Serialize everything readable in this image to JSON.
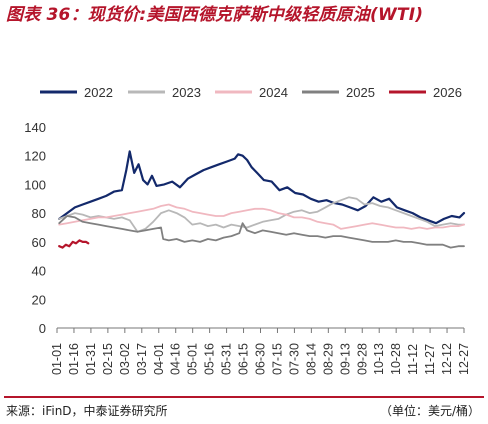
{
  "title": "图表 36：现货价:美国西德克萨斯中级轻质原油(WTI)",
  "source": "来源：iFinD，中泰证券研究所",
  "unit": "（单位：美元/桶）",
  "chart_data": {
    "type": "line",
    "title": "图表 36：现货价:美国西德克萨斯中级轻质原油(WTI)",
    "xlabel": "",
    "ylabel": "",
    "ylim": [
      0,
      140
    ],
    "yticks": [
      0,
      20,
      40,
      60,
      80,
      100,
      120,
      140
    ],
    "grid": false,
    "legend_position": "top",
    "x_tick_labels": [
      "01-01",
      "01-16",
      "01-31",
      "02-15",
      "03-02",
      "03-17",
      "04-01",
      "04-16",
      "05-01",
      "05-16",
      "05-31",
      "06-15",
      "06-30",
      "07-15",
      "07-30",
      "08-14",
      "08-29",
      "09-13",
      "09-28",
      "10-13",
      "10-28",
      "11-12",
      "11-27",
      "12-12",
      "12-27"
    ],
    "x_day_range": [
      1,
      365
    ],
    "series": [
      {
        "name": "2022",
        "color": "#13296b",
        "x": [
          3,
          10,
          17,
          24,
          31,
          38,
          45,
          52,
          59,
          63,
          66,
          70,
          74,
          78,
          82,
          86,
          90,
          97,
          104,
          111,
          118,
          125,
          132,
          139,
          146,
          153,
          160,
          163,
          167,
          171,
          175,
          180,
          186,
          193,
          200,
          207,
          214,
          221,
          228,
          235,
          242,
          249,
          256,
          263,
          270,
          277,
          284,
          291,
          298,
          305,
          312,
          319,
          326,
          333,
          340,
          347,
          354,
          361,
          365
        ],
        "values": [
          76,
          80,
          84,
          86,
          88,
          90,
          92,
          95,
          96,
          110,
          123,
          108,
          114,
          103,
          100,
          106,
          99,
          100,
          102,
          98,
          104,
          107,
          110,
          112,
          114,
          116,
          118,
          121,
          120,
          117,
          112,
          108,
          103,
          102,
          96,
          98,
          94,
          93,
          90,
          88,
          89,
          87,
          86,
          84,
          82,
          85,
          91,
          88,
          90,
          84,
          82,
          80,
          77,
          75,
          73,
          76,
          78,
          77,
          80
        ]
      },
      {
        "name": "2023",
        "color": "#b8b8b8",
        "x": [
          3,
          10,
          17,
          24,
          31,
          38,
          45,
          52,
          59,
          66,
          73,
          80,
          87,
          94,
          101,
          108,
          115,
          122,
          129,
          136,
          143,
          150,
          157,
          164,
          171,
          178,
          185,
          192,
          199,
          206,
          213,
          220,
          227,
          234,
          241,
          248,
          255,
          262,
          269,
          276,
          283,
          290,
          297,
          304,
          311,
          318,
          325,
          332,
          339,
          346,
          353,
          360,
          365
        ],
        "values": [
          76,
          78,
          80,
          79,
          77,
          78,
          77,
          76,
          77,
          75,
          67,
          69,
          74,
          80,
          82,
          80,
          77,
          72,
          73,
          71,
          72,
          70,
          72,
          71,
          70,
          72,
          74,
          75,
          76,
          79,
          81,
          82,
          80,
          81,
          84,
          87,
          89,
          91,
          90,
          86,
          87,
          85,
          84,
          82,
          80,
          78,
          76,
          74,
          71,
          72,
          73,
          72,
          72
        ]
      },
      {
        "name": "2024",
        "color": "#f0b8c0",
        "x": [
          3,
          10,
          17,
          24,
          31,
          38,
          45,
          52,
          59,
          66,
          73,
          80,
          87,
          94,
          101,
          108,
          115,
          122,
          129,
          136,
          143,
          150,
          157,
          164,
          171,
          178,
          185,
          192,
          199,
          206,
          213,
          220,
          227,
          234,
          241,
          248,
          255,
          262,
          269,
          276,
          283,
          290,
          297,
          304,
          311,
          318,
          325,
          332,
          339,
          346,
          353,
          360,
          365
        ],
        "values": [
          72,
          73,
          74,
          75,
          76,
          77,
          77,
          78,
          79,
          80,
          81,
          82,
          83,
          85,
          86,
          84,
          83,
          81,
          80,
          79,
          78,
          78,
          80,
          81,
          82,
          83,
          83,
          82,
          80,
          79,
          77,
          77,
          76,
          74,
          73,
          72,
          69,
          70,
          71,
          72,
          73,
          72,
          71,
          70,
          70,
          69,
          70,
          69,
          70,
          70,
          71,
          71,
          72
        ]
      },
      {
        "name": "2025",
        "color": "#808080",
        "x": [
          3,
          10,
          17,
          24,
          31,
          38,
          45,
          52,
          59,
          66,
          73,
          80,
          87,
          94,
          96,
          101,
          108,
          115,
          122,
          129,
          136,
          143,
          150,
          157,
          164,
          167,
          171,
          178,
          185,
          192,
          199,
          206,
          213,
          220,
          227,
          234,
          241,
          248,
          255,
          262,
          269,
          276,
          283,
          290,
          297,
          304,
          311,
          318,
          325,
          332,
          339,
          346,
          353,
          360,
          365
        ],
        "values": [
          73,
          78,
          77,
          74,
          73,
          72,
          71,
          70,
          69,
          68,
          67,
          68,
          69,
          70,
          62,
          61,
          62,
          60,
          61,
          60,
          62,
          61,
          63,
          64,
          66,
          73,
          68,
          66,
          68,
          67,
          66,
          65,
          66,
          65,
          64,
          64,
          63,
          64,
          64,
          63,
          62,
          61,
          60,
          60,
          60,
          61,
          60,
          60,
          59,
          58,
          58,
          58,
          56,
          57,
          57
        ]
      },
      {
        "name": "2026",
        "color": "#b5152b",
        "x": [
          3,
          6,
          9,
          12,
          15,
          18,
          21,
          24,
          27,
          29
        ],
        "values": [
          57,
          56,
          58,
          57,
          60,
          59,
          61,
          60,
          60,
          59
        ]
      }
    ]
  }
}
